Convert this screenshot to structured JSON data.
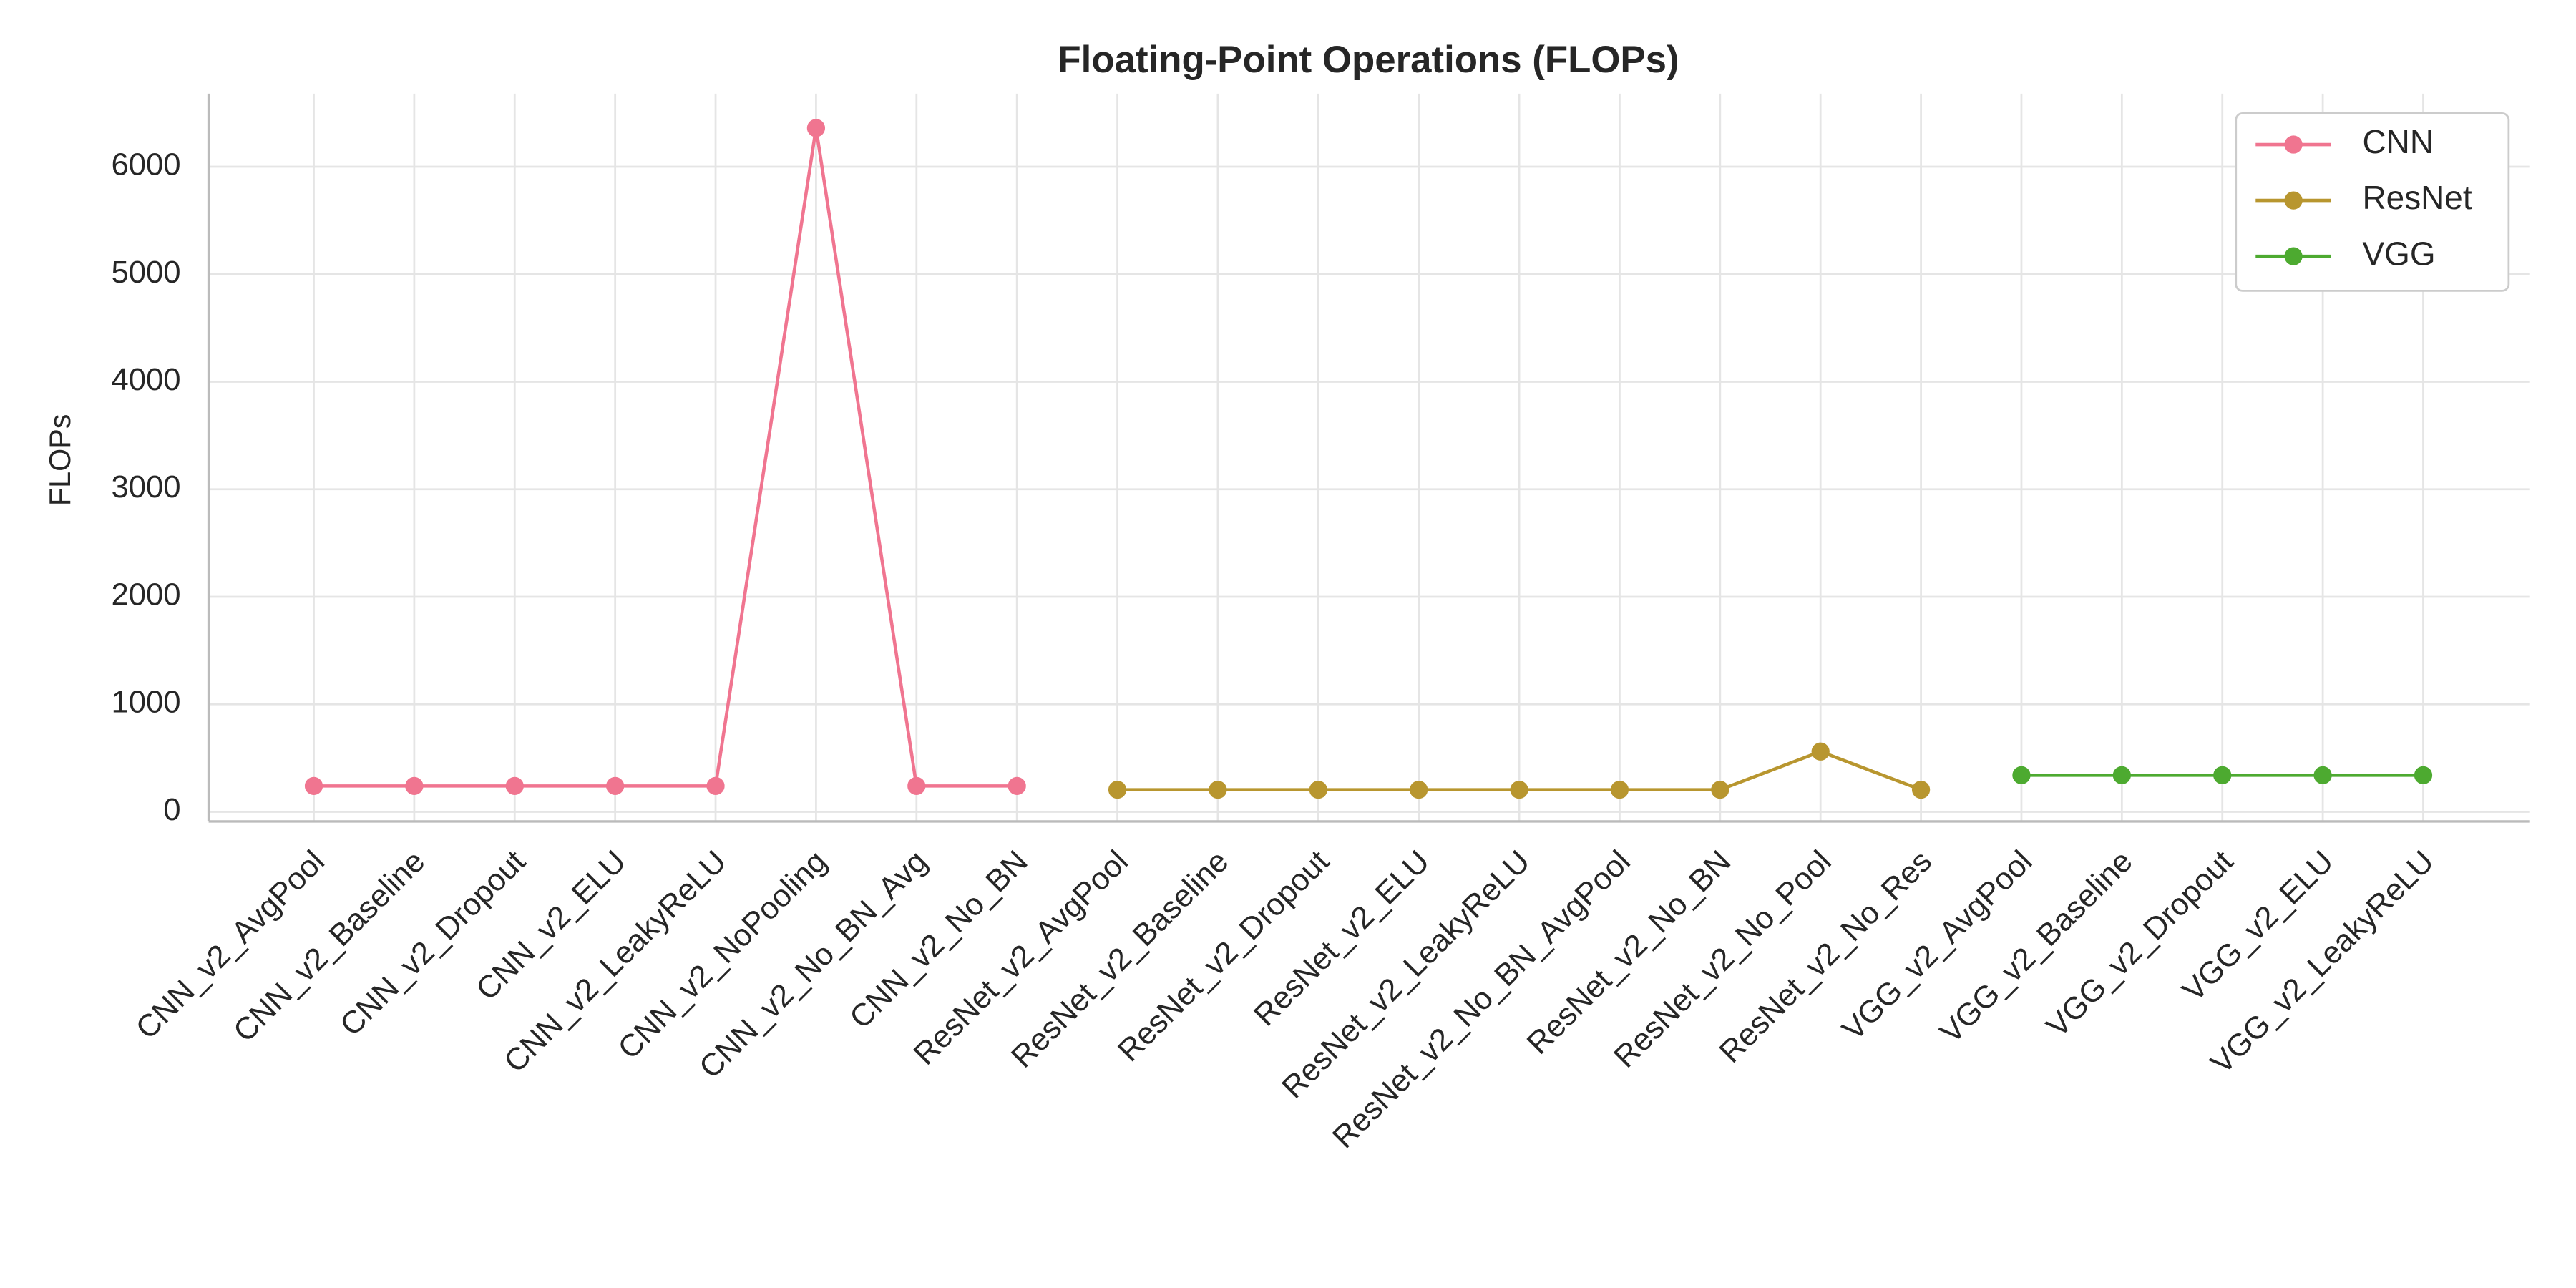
{
  "chart_data": {
    "type": "line",
    "title": "Floating-Point Operations (FLOPs)",
    "y_label": "FLOPs",
    "categories": [
      "CNN_v2_AvgPool",
      "CNN_v2_Baseline",
      "CNN_v2_Dropout",
      "CNN_v2_ELU",
      "CNN_v2_LeakyReLU",
      "CNN_v2_NoPooling",
      "CNN_v2_No_BN_Avg",
      "CNN_v2_No_BN",
      "ResNet_v2_AvgPool",
      "ResNet_v2_Baseline",
      "ResNet_v2_Dropout",
      "ResNet_v2_ELU",
      "ResNet_v2_LeakyReLU",
      "ResNet_v2_No_BN_AvgPool",
      "ResNet_v2_No_BN",
      "ResNet_v2_No_Pool",
      "ResNet_v2_No_Res",
      "VGG_v2_AvgPool",
      "VGG_v2_Baseline",
      "VGG_v2_Dropout",
      "VGG_v2_ELU",
      "VGG_v2_LeakyReLU"
    ],
    "series": [
      {
        "name": "CNN",
        "color": "#f07590",
        "values": [
          240,
          240,
          240,
          240,
          240,
          6360,
          240,
          240,
          null,
          null,
          null,
          null,
          null,
          null,
          null,
          null,
          null,
          null,
          null,
          null,
          null,
          null
        ]
      },
      {
        "name": "ResNet",
        "color": "#b8962f",
        "values": [
          null,
          null,
          null,
          null,
          null,
          null,
          null,
          null,
          205,
          205,
          205,
          205,
          205,
          205,
          205,
          560,
          205,
          null,
          null,
          null,
          null,
          null
        ]
      },
      {
        "name": "VGG",
        "color": "#4daa30",
        "values": [
          null,
          null,
          null,
          null,
          null,
          null,
          null,
          null,
          null,
          null,
          null,
          null,
          null,
          null,
          null,
          null,
          null,
          340,
          340,
          340,
          340,
          340
        ]
      }
    ],
    "ylim": [
      -90,
      6680
    ],
    "yticks": [
      0,
      1000,
      2000,
      3000,
      4000,
      5000,
      6000
    ],
    "grid": true,
    "legend": "upper right"
  }
}
